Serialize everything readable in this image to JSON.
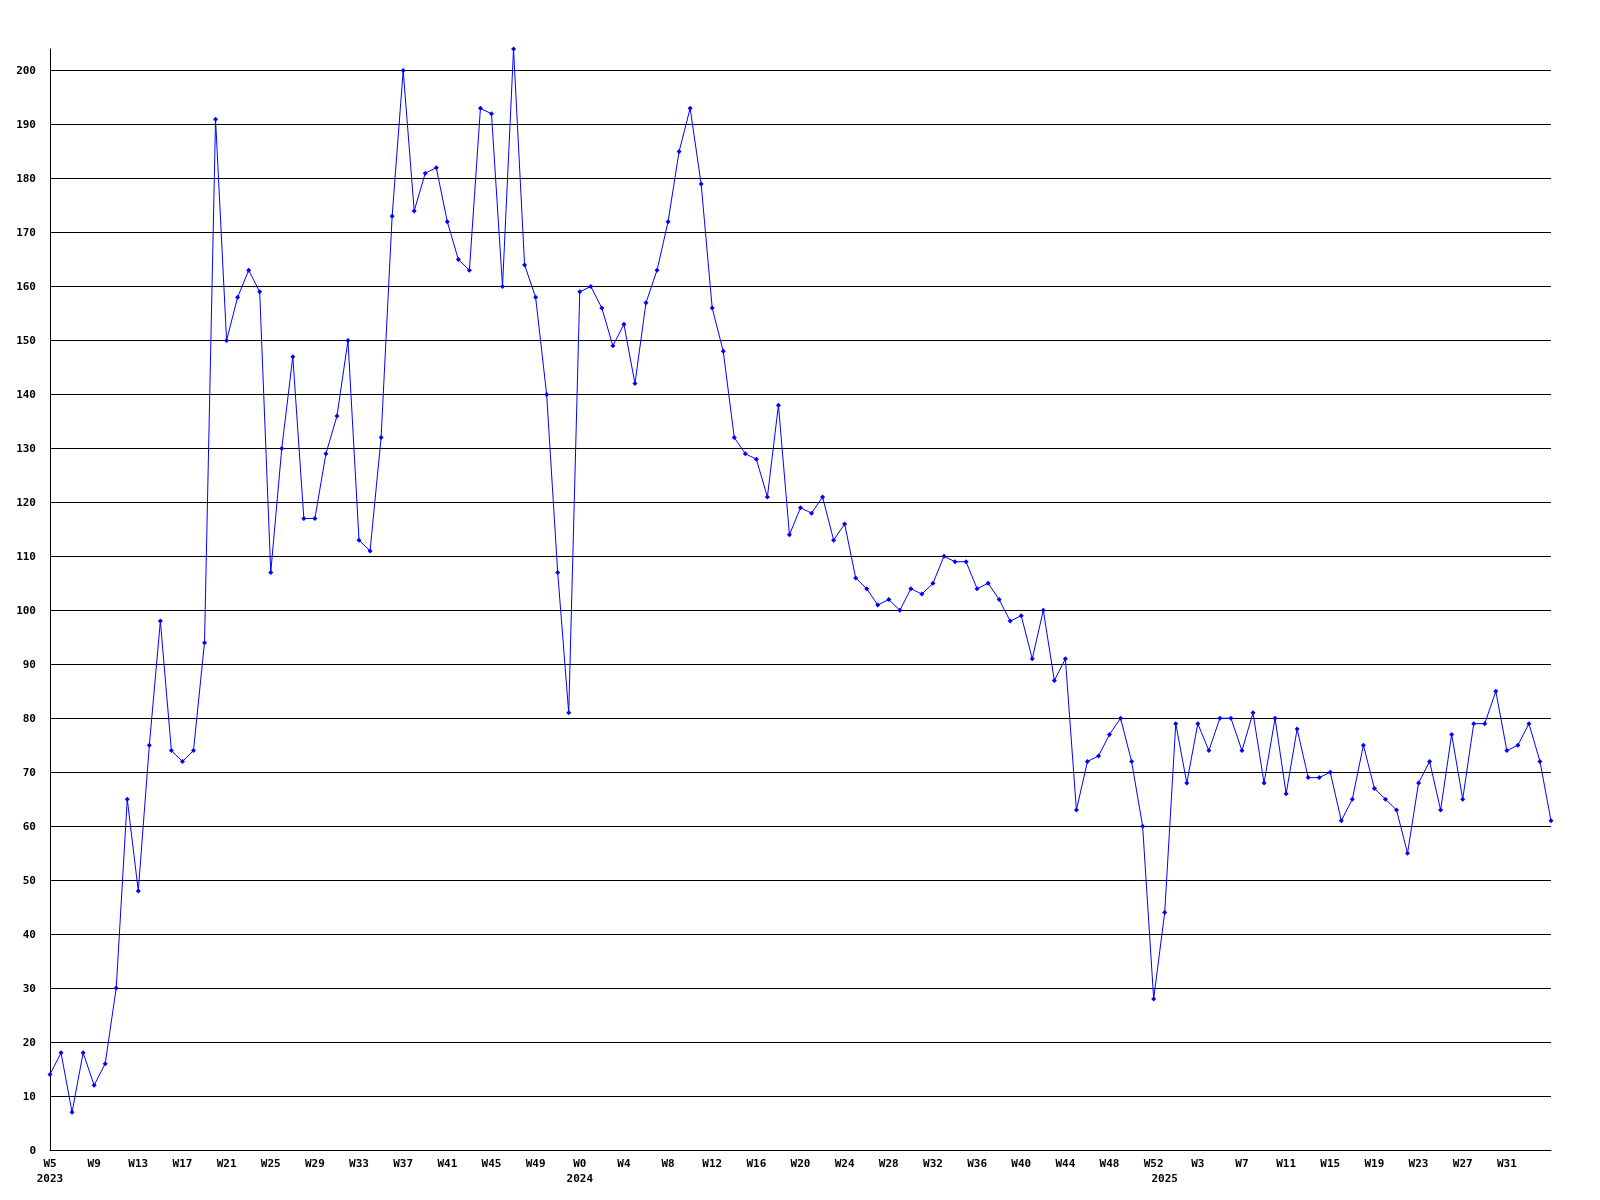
{
  "chart_data": {
    "type": "line",
    "categories": [
      "W5\n2023",
      null,
      null,
      null,
      "W9",
      null,
      null,
      null,
      "W13",
      null,
      null,
      null,
      "W17",
      null,
      null,
      null,
      "W21",
      null,
      null,
      null,
      "W25",
      null,
      null,
      null,
      "W29",
      null,
      null,
      null,
      "W33",
      null,
      null,
      null,
      "W37",
      null,
      null,
      null,
      "W41",
      null,
      null,
      null,
      "W45",
      null,
      null,
      null,
      "W49",
      null,
      null,
      null,
      "W0\n2024",
      null,
      null,
      null,
      "W4",
      null,
      null,
      null,
      "W8",
      null,
      null,
      null,
      "W12",
      null,
      null,
      null,
      "W16",
      null,
      null,
      null,
      "W20",
      null,
      null,
      null,
      "W24",
      null,
      null,
      null,
      "W28",
      null,
      null,
      null,
      "W32",
      null,
      null,
      null,
      "W36",
      null,
      null,
      null,
      "W40",
      null,
      null,
      null,
      "W44",
      null,
      null,
      null,
      "W48",
      null,
      null,
      null,
      "W52",
      "\n2025",
      null,
      null,
      "W3",
      null,
      null,
      null,
      "W7",
      null,
      null,
      null,
      "W11",
      null,
      null,
      null,
      "W15",
      null,
      null,
      null,
      "W19",
      null,
      null,
      null,
      "W23",
      null,
      null,
      null,
      "W27",
      null,
      null,
      null,
      "W31",
      null,
      null,
      null,
      null
    ],
    "series": [
      {
        "color": "#0000ff",
        "values": [
          14,
          18,
          7,
          18,
          12,
          16,
          30,
          65,
          48,
          75,
          98,
          74,
          72,
          74,
          94,
          191,
          150,
          158,
          163,
          159,
          107,
          130,
          147,
          117,
          117,
          129,
          136,
          150,
          113,
          111,
          132,
          173,
          200,
          174,
          181,
          182,
          172,
          165,
          163,
          193,
          192,
          160,
          204,
          164,
          158,
          140,
          107,
          81,
          159,
          160,
          156,
          149,
          153,
          142,
          157,
          163,
          172,
          185,
          193,
          179,
          156,
          148,
          132,
          129,
          128,
          121,
          138,
          114,
          119,
          118,
          121,
          113,
          116,
          106,
          104,
          101,
          102,
          100,
          104,
          103,
          105,
          110,
          109,
          109,
          104,
          105,
          102,
          98,
          99,
          91,
          100,
          87,
          91,
          63,
          72,
          73,
          77,
          80,
          72,
          60,
          28,
          44,
          79,
          68,
          79,
          74,
          80,
          80,
          74,
          81,
          68,
          80,
          66,
          78,
          69,
          69,
          70,
          61,
          65,
          75,
          67,
          65,
          63,
          55,
          68,
          72,
          63,
          77,
          65,
          79,
          79,
          85,
          74,
          75,
          79,
          72,
          61
        ]
      }
    ],
    "ylim": [
      0,
      204
    ],
    "yticks": [
      0,
      10,
      20,
      30,
      40,
      50,
      60,
      70,
      80,
      90,
      100,
      110,
      120,
      130,
      140,
      150,
      160,
      170,
      180,
      190,
      200
    ],
    "grid": "y",
    "marker": "diamond",
    "line_style": "solid"
  }
}
